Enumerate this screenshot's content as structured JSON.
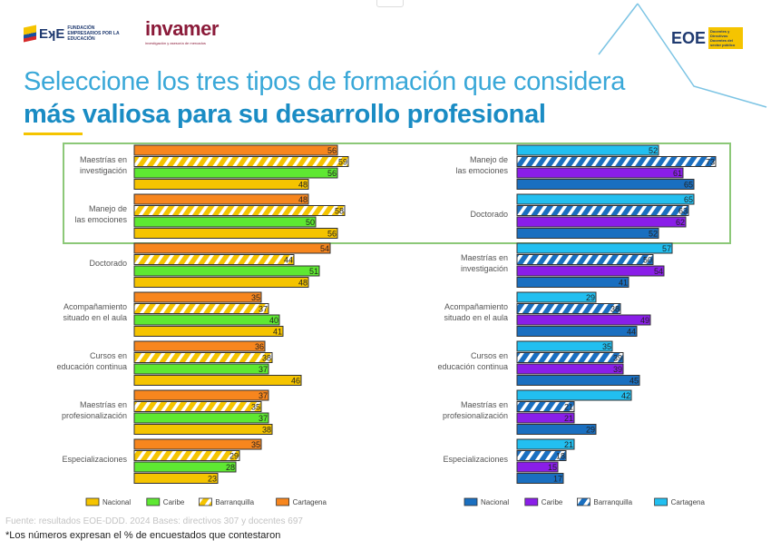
{
  "header": {
    "logos": [
      "FUNDACIÓN EMPRESARIOS POR LA EDUCACIÓN",
      "invamer",
      "EOE"
    ],
    "fee_mark": "EʞE",
    "fee_text": "FUNDACIÓN EMPRESARIOS POR LA EDUCACIÓN",
    "invamer": "invamer",
    "invamer_sub": "investigación y asesoría de mercados",
    "eoe": "EOE",
    "eoe_tag": "Docentes y Directivos Docentes del sector público",
    "title_regular": "Seleccione los tres tipos de formación que considera ",
    "title_bold": "más valiosa para su desarrollo profesional"
  },
  "footer": {
    "source": "Fuente: resultados EOE-DDD. 2024 Bases: directivos 307 y docentes 697",
    "note": "*Los números expresan el % de encuestados que contestaron"
  },
  "colors": {
    "highlight_box": "#8cc878",
    "title": "#3aa8d8"
  },
  "chart_data": [
    {
      "type": "bar",
      "orientation": "horizontal",
      "title": "",
      "categories": [
        "Maestrías en investigación",
        "Manejo de las emociones",
        "Doctorado",
        "Acompañamiento situado en el aula",
        "Cursos en educación continua",
        "Maestrías en profesionalización",
        "Especializaciones"
      ],
      "highlighted_categories": [
        "Maestrías en investigación",
        "Manejo de las emociones"
      ],
      "series": [
        {
          "name": "Cartagena",
          "color": "#f7861e",
          "pattern": "solid",
          "values": [
            56,
            48,
            54,
            35,
            36,
            37,
            35
          ]
        },
        {
          "name": "Barranquilla",
          "color": "#f5c400",
          "pattern": "hatched",
          "values": [
            59,
            58,
            44,
            37,
            38,
            35,
            29
          ]
        },
        {
          "name": "Caribe",
          "color": "#5ee832",
          "pattern": "solid",
          "values": [
            56,
            50,
            51,
            40,
            37,
            37,
            28
          ]
        },
        {
          "name": "Nacional",
          "color": "#f5c400",
          "pattern": "solid",
          "values": [
            48,
            56,
            48,
            41,
            46,
            38,
            23
          ]
        }
      ],
      "legend_order": [
        "Nacional",
        "Caribe",
        "Barranquilla",
        "Cartagena"
      ],
      "legend": "bottom",
      "grid": false
    },
    {
      "type": "bar",
      "orientation": "horizontal",
      "title": "",
      "categories": [
        "Manejo de las emociones",
        "Doctorado",
        "Maestrías en investigación",
        "Acompañamiento situado en el aula",
        "Cursos en educación continua",
        "Maestrías en profesionalización",
        "Especializaciones"
      ],
      "highlighted_categories": [
        "Manejo de las emociones",
        "Doctorado"
      ],
      "series": [
        {
          "name": "Cartagena",
          "color": "#22bff0",
          "pattern": "solid",
          "values": [
            52,
            65,
            57,
            29,
            35,
            42,
            21
          ]
        },
        {
          "name": "Barranquilla",
          "color": "#1a6fc0",
          "pattern": "hatched",
          "values": [
            73,
            63,
            50,
            38,
            39,
            21,
            18
          ]
        },
        {
          "name": "Caribe",
          "color": "#8a1ee8",
          "pattern": "solid",
          "values": [
            61,
            62,
            54,
            49,
            39,
            21,
            15
          ]
        },
        {
          "name": "Nacional",
          "color": "#1a6fc0",
          "pattern": "solid",
          "values": [
            65,
            52,
            41,
            44,
            45,
            29,
            17
          ]
        }
      ],
      "legend_order": [
        "Nacional",
        "Caribe",
        "Barranquilla",
        "Cartagena"
      ],
      "legend": "bottom",
      "grid": false
    }
  ]
}
